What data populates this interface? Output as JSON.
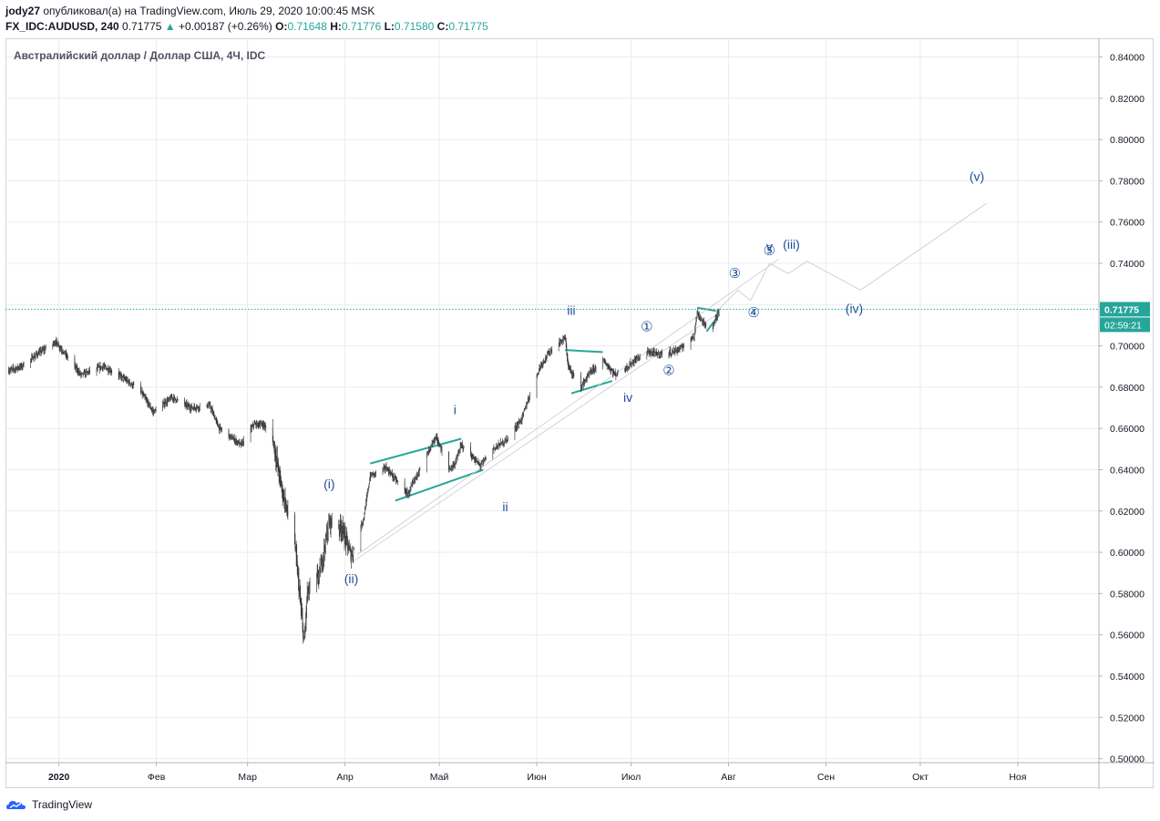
{
  "header": {
    "line1_user": "jody27",
    "line1_rest": " опубликовал(а) на TradingView.com, Июль 29, 2020 10:00:45 MSK",
    "symbol": "FX_IDC:AUDUSD, 240",
    "last": "0.71775",
    "arrow": "▲",
    "change": "+0.00187 (+0.26%)",
    "o_label": "O:",
    "o_value": "0.71648",
    "h_label": "H:",
    "h_value": "0.71776",
    "l_label": "L:",
    "l_value": "0.71580",
    "c_label": "C:",
    "c_value": "0.71775"
  },
  "footer": {
    "brand": "TradingView"
  },
  "chart_data": {
    "type": "candlestick",
    "title": "Австралийский доллар / Доллар США, 4Ч, IDC",
    "ylim": [
      0.5,
      0.85
    ],
    "y_ticks": [
      "0.84000",
      "0.82000",
      "0.80000",
      "0.78000",
      "0.76000",
      "0.74000",
      "0.72000",
      "0.70000",
      "0.68000",
      "0.66000",
      "0.64000",
      "0.62000",
      "0.60000",
      "0.58000",
      "0.56000",
      "0.54000",
      "0.52000",
      "0.50000"
    ],
    "x_ticks": [
      "2020",
      "Фев",
      "Мар",
      "Апр",
      "Май",
      "Июн",
      "Июл",
      "Авг",
      "Сен",
      "Окт",
      "Ноя"
    ],
    "last_price": {
      "value": 0.71775,
      "label": "0.71775",
      "countdown": "02:59:21"
    },
    "price_path": [
      {
        "t": "2019-12-16",
        "p": 0.688
      },
      {
        "t": "2019-12-20",
        "p": 0.69
      },
      {
        "t": "2019-12-26",
        "p": 0.697
      },
      {
        "t": "2019-12-31",
        "p": 0.702
      },
      {
        "t": "2020-01-03",
        "p": 0.696
      },
      {
        "t": "2020-01-08",
        "p": 0.686
      },
      {
        "t": "2020-01-15",
        "p": 0.69
      },
      {
        "t": "2020-01-21",
        "p": 0.685
      },
      {
        "t": "2020-01-27",
        "p": 0.678
      },
      {
        "t": "2020-01-31",
        "p": 0.668
      },
      {
        "t": "2020-02-06",
        "p": 0.675
      },
      {
        "t": "2020-02-12",
        "p": 0.67
      },
      {
        "t": "2020-02-18",
        "p": 0.671
      },
      {
        "t": "2020-02-21",
        "p": 0.66
      },
      {
        "t": "2020-02-28",
        "p": 0.652
      },
      {
        "t": "2020-03-03",
        "p": 0.662
      },
      {
        "t": "2020-03-06",
        "p": 0.662
      },
      {
        "t": "2020-03-09",
        "p": 0.655
      },
      {
        "t": "2020-03-12",
        "p": 0.63
      },
      {
        "t": "2020-03-16",
        "p": 0.605
      },
      {
        "t": "2020-03-19",
        "p": 0.556
      },
      {
        "t": "2020-03-20",
        "p": 0.58
      },
      {
        "t": "2020-03-24",
        "p": 0.59
      },
      {
        "t": "2020-03-27",
        "p": 0.615
      },
      {
        "t": "2020-03-31",
        "p": 0.612
      },
      {
        "t": "2020-04-03",
        "p": 0.598
      },
      {
        "t": "2020-04-07",
        "p": 0.617
      },
      {
        "t": "2020-04-09",
        "p": 0.637
      },
      {
        "t": "2020-04-14",
        "p": 0.641
      },
      {
        "t": "2020-04-21",
        "p": 0.628
      },
      {
        "t": "2020-04-24",
        "p": 0.638
      },
      {
        "t": "2020-04-30",
        "p": 0.656
      },
      {
        "t": "2020-05-04",
        "p": 0.64
      },
      {
        "t": "2020-05-06",
        "p": 0.643
      },
      {
        "t": "2020-05-08",
        "p": 0.652
      },
      {
        "t": "2020-05-14",
        "p": 0.642
      },
      {
        "t": "2020-05-18",
        "p": 0.65
      },
      {
        "t": "2020-05-22",
        "p": 0.654
      },
      {
        "t": "2020-05-27",
        "p": 0.664
      },
      {
        "t": "2020-06-02",
        "p": 0.69
      },
      {
        "t": "2020-06-05",
        "p": 0.697
      },
      {
        "t": "2020-06-10",
        "p": 0.704
      },
      {
        "t": "2020-06-11",
        "p": 0.69
      },
      {
        "t": "2020-06-15",
        "p": 0.68
      },
      {
        "t": "2020-06-18",
        "p": 0.687
      },
      {
        "t": "2020-06-22",
        "p": 0.693
      },
      {
        "t": "2020-06-26",
        "p": 0.686
      },
      {
        "t": "2020-06-30",
        "p": 0.69
      },
      {
        "t": "2020-07-03",
        "p": 0.694
      },
      {
        "t": "2020-07-06",
        "p": 0.697
      },
      {
        "t": "2020-07-10",
        "p": 0.696
      },
      {
        "t": "2020-07-14",
        "p": 0.697
      },
      {
        "t": "2020-07-17",
        "p": 0.699
      },
      {
        "t": "2020-07-21",
        "p": 0.705
      },
      {
        "t": "2020-07-22",
        "p": 0.716
      },
      {
        "t": "2020-07-24",
        "p": 0.711
      },
      {
        "t": "2020-07-27",
        "p": 0.709
      },
      {
        "t": "2020-07-29",
        "p": 0.7178
      }
    ],
    "wave_labels": [
      {
        "text": "(i)",
        "t": "2020-03-27",
        "p": 0.631
      },
      {
        "text": "(ii)",
        "t": "2020-04-03",
        "p": 0.585
      },
      {
        "text": "i",
        "t": "2020-05-06",
        "p": 0.667
      },
      {
        "text": "ii",
        "t": "2020-05-22",
        "p": 0.62
      },
      {
        "text": "iii",
        "t": "2020-06-12",
        "p": 0.715
      },
      {
        "text": "iv",
        "t": "2020-06-30",
        "p": 0.673
      },
      {
        "text": "①",
        "t": "2020-07-06",
        "p": 0.707
      },
      {
        "text": "②",
        "t": "2020-07-13",
        "p": 0.686
      },
      {
        "text": "③",
        "t": "2020-08-03",
        "p": 0.733
      },
      {
        "text": "④",
        "t": "2020-08-09",
        "p": 0.714
      },
      {
        "text": "⑤",
        "t": "2020-08-14",
        "p": 0.744
      },
      {
        "text": "v",
        "t": "2020-08-14",
        "p": 0.746
      },
      {
        "text": "(iii)",
        "t": "2020-08-21",
        "p": 0.747
      },
      {
        "text": "(iv)",
        "t": "2020-09-10",
        "p": 0.716
      },
      {
        "text": "(v)",
        "t": "2020-10-19",
        "p": 0.78
      }
    ],
    "projection_path": [
      {
        "t": "2020-07-29",
        "p": 0.7178
      },
      {
        "t": "2020-08-04",
        "p": 0.727
      },
      {
        "t": "2020-08-08",
        "p": 0.722
      },
      {
        "t": "2020-08-14",
        "p": 0.74
      },
      {
        "t": "2020-08-20",
        "p": 0.735
      },
      {
        "t": "2020-08-26",
        "p": 0.741
      },
      {
        "t": "2020-09-12",
        "p": 0.727
      },
      {
        "t": "2020-10-22",
        "p": 0.769
      }
    ],
    "colors": {
      "up": "#26a69a",
      "down": "#ef5350",
      "bar": "#3a3a3a",
      "wave": "#1e4c9a",
      "trend": "#26a69a",
      "grid": "#e9ecf1",
      "price_tag": "#26a69a"
    }
  }
}
